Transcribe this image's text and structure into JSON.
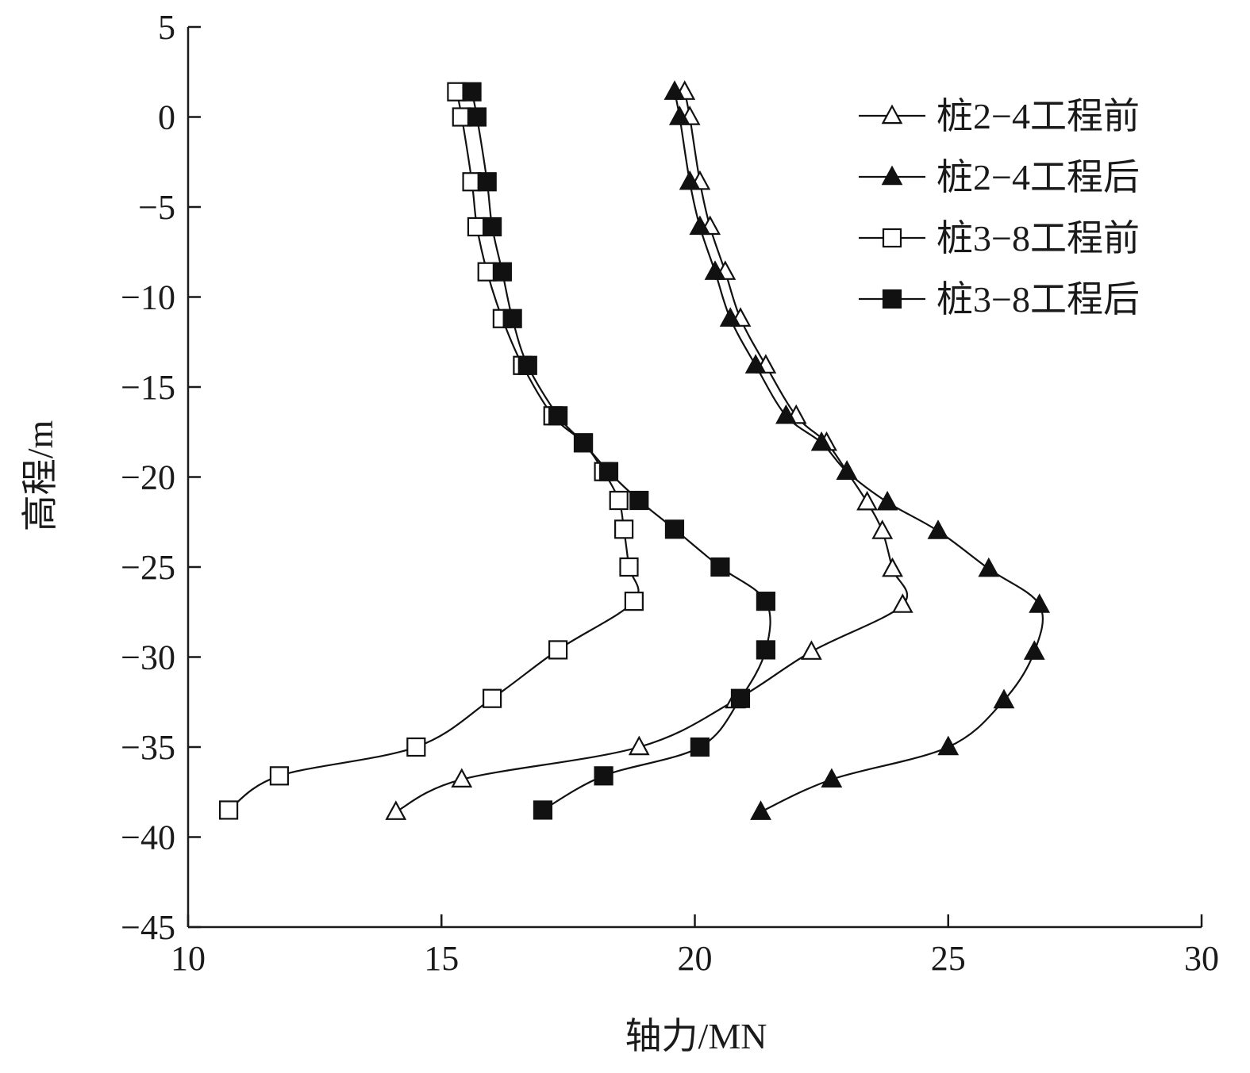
{
  "chart_data": {
    "type": "line",
    "title": "",
    "xlabel": "轴力/MN",
    "ylabel": "高程/m",
    "xlim": [
      10,
      30
    ],
    "ylim": [
      -45,
      5
    ],
    "x_ticks": [
      "10",
      "15",
      "20",
      "25",
      "30"
    ],
    "y_ticks": [
      "5",
      "0",
      "−5",
      "−10",
      "−15",
      "−20",
      "−25",
      "−30",
      "−35",
      "−40",
      "−45"
    ],
    "grid": false,
    "legend_position": "top-right",
    "series": [
      {
        "name": "桩2−4工程前",
        "marker": "triangle-open",
        "points": [
          [
            19.8,
            1.4
          ],
          [
            19.9,
            0.0
          ],
          [
            20.1,
            -3.6
          ],
          [
            20.3,
            -6.1
          ],
          [
            20.6,
            -8.6
          ],
          [
            20.9,
            -11.2
          ],
          [
            21.4,
            -13.8
          ],
          [
            22.0,
            -16.6
          ],
          [
            22.6,
            -18.1
          ],
          [
            23.0,
            -19.7
          ],
          [
            23.4,
            -21.4
          ],
          [
            23.7,
            -23.0
          ],
          [
            23.9,
            -25.1
          ],
          [
            24.1,
            -27.1
          ],
          [
            22.3,
            -29.7
          ],
          [
            20.8,
            -32.4
          ],
          [
            18.9,
            -35.0
          ],
          [
            15.4,
            -36.8
          ],
          [
            14.1,
            -38.6
          ]
        ]
      },
      {
        "name": "桩2−4工程后",
        "marker": "triangle-filled",
        "points": [
          [
            19.6,
            1.4
          ],
          [
            19.7,
            0.0
          ],
          [
            19.9,
            -3.6
          ],
          [
            20.1,
            -6.1
          ],
          [
            20.4,
            -8.6
          ],
          [
            20.7,
            -11.2
          ],
          [
            21.2,
            -13.8
          ],
          [
            21.8,
            -16.6
          ],
          [
            22.5,
            -18.1
          ],
          [
            23.0,
            -19.7
          ],
          [
            23.8,
            -21.4
          ],
          [
            24.8,
            -23.0
          ],
          [
            25.8,
            -25.1
          ],
          [
            26.8,
            -27.1
          ],
          [
            26.7,
            -29.7
          ],
          [
            26.1,
            -32.4
          ],
          [
            25.0,
            -35.0
          ],
          [
            22.7,
            -36.8
          ],
          [
            21.3,
            -38.6
          ]
        ]
      },
      {
        "name": "桩3−8工程前",
        "marker": "square-open",
        "points": [
          [
            15.3,
            1.4
          ],
          [
            15.4,
            0.0
          ],
          [
            15.6,
            -3.6
          ],
          [
            15.7,
            -6.1
          ],
          [
            15.9,
            -8.6
          ],
          [
            16.2,
            -11.2
          ],
          [
            16.6,
            -13.8
          ],
          [
            17.2,
            -16.6
          ],
          [
            17.8,
            -18.1
          ],
          [
            18.2,
            -19.7
          ],
          [
            18.5,
            -21.3
          ],
          [
            18.6,
            -22.9
          ],
          [
            18.7,
            -25.0
          ],
          [
            18.8,
            -26.9
          ],
          [
            17.3,
            -29.6
          ],
          [
            16.0,
            -32.3
          ],
          [
            14.5,
            -35.0
          ],
          [
            11.8,
            -36.6
          ],
          [
            10.8,
            -38.5
          ]
        ]
      },
      {
        "name": "桩3−8工程后",
        "marker": "square-filled",
        "points": [
          [
            15.6,
            1.4
          ],
          [
            15.7,
            0.0
          ],
          [
            15.9,
            -3.6
          ],
          [
            16.0,
            -6.1
          ],
          [
            16.2,
            -8.6
          ],
          [
            16.4,
            -11.2
          ],
          [
            16.7,
            -13.8
          ],
          [
            17.3,
            -16.6
          ],
          [
            17.8,
            -18.1
          ],
          [
            18.3,
            -19.7
          ],
          [
            18.9,
            -21.3
          ],
          [
            19.6,
            -22.9
          ],
          [
            20.5,
            -25.0
          ],
          [
            21.4,
            -26.9
          ],
          [
            21.4,
            -29.6
          ],
          [
            20.9,
            -32.3
          ],
          [
            20.1,
            -35.0
          ],
          [
            18.2,
            -36.6
          ],
          [
            17.0,
            -38.5
          ]
        ]
      }
    ]
  }
}
